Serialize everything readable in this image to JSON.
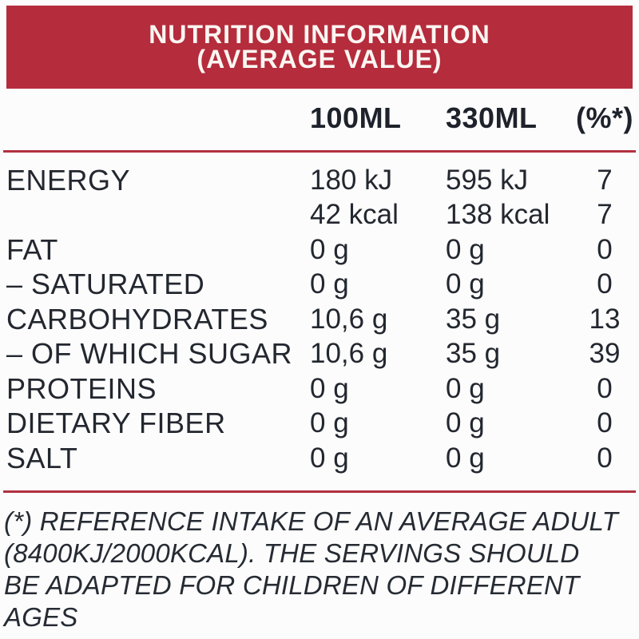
{
  "header": {
    "line1": "NUTRITION INFORMATION",
    "line2": "(AVERAGE VALUE)"
  },
  "columns": [
    "100ML",
    "330ML",
    "(%*)"
  ],
  "rows": [
    {
      "label": "ENERGY",
      "per_100ml": "180 kJ",
      "per_330ml": "595 kJ",
      "percent": "7"
    },
    {
      "label": "",
      "per_100ml": "42 kcal",
      "per_330ml": "138 kcal",
      "percent": "7"
    },
    {
      "label": "FAT",
      "per_100ml": "0 g",
      "per_330ml": "0 g",
      "percent": "0"
    },
    {
      "label": "– SATURATED",
      "per_100ml": "0 g",
      "per_330ml": "0 g",
      "percent": "0"
    },
    {
      "label": "CARBOHYDRATES",
      "per_100ml": "10,6 g",
      "per_330ml": "35 g",
      "percent": "13"
    },
    {
      "label": "– OF WHICH SUGAR",
      "per_100ml": "10,6 g",
      "per_330ml": "35 g",
      "percent": "39"
    },
    {
      "label": "PROTEINS",
      "per_100ml": "0 g",
      "per_330ml": "0 g",
      "percent": "0"
    },
    {
      "label": "DIETARY FIBER",
      "per_100ml": "0 g",
      "per_330ml": "0 g",
      "percent": "0"
    },
    {
      "label": "SALT",
      "per_100ml": "0 g",
      "per_330ml": "0 g",
      "percent": "0"
    }
  ],
  "footnote": {
    "lines": [
      "(*) REFERENCE INTAKE OF AN AVERAGE ADULT",
      "(8400KJ/2000KCAL). THE SERVINGS SHOULD",
      "BE ADAPTED FOR CHILDREN OF DIFFERENT",
      "AGES"
    ]
  },
  "colors": {
    "accent_red": "#B52C3C",
    "rule_red": "#B23141",
    "text_dark": "#23272F",
    "header_text": "#FAF6F2"
  }
}
